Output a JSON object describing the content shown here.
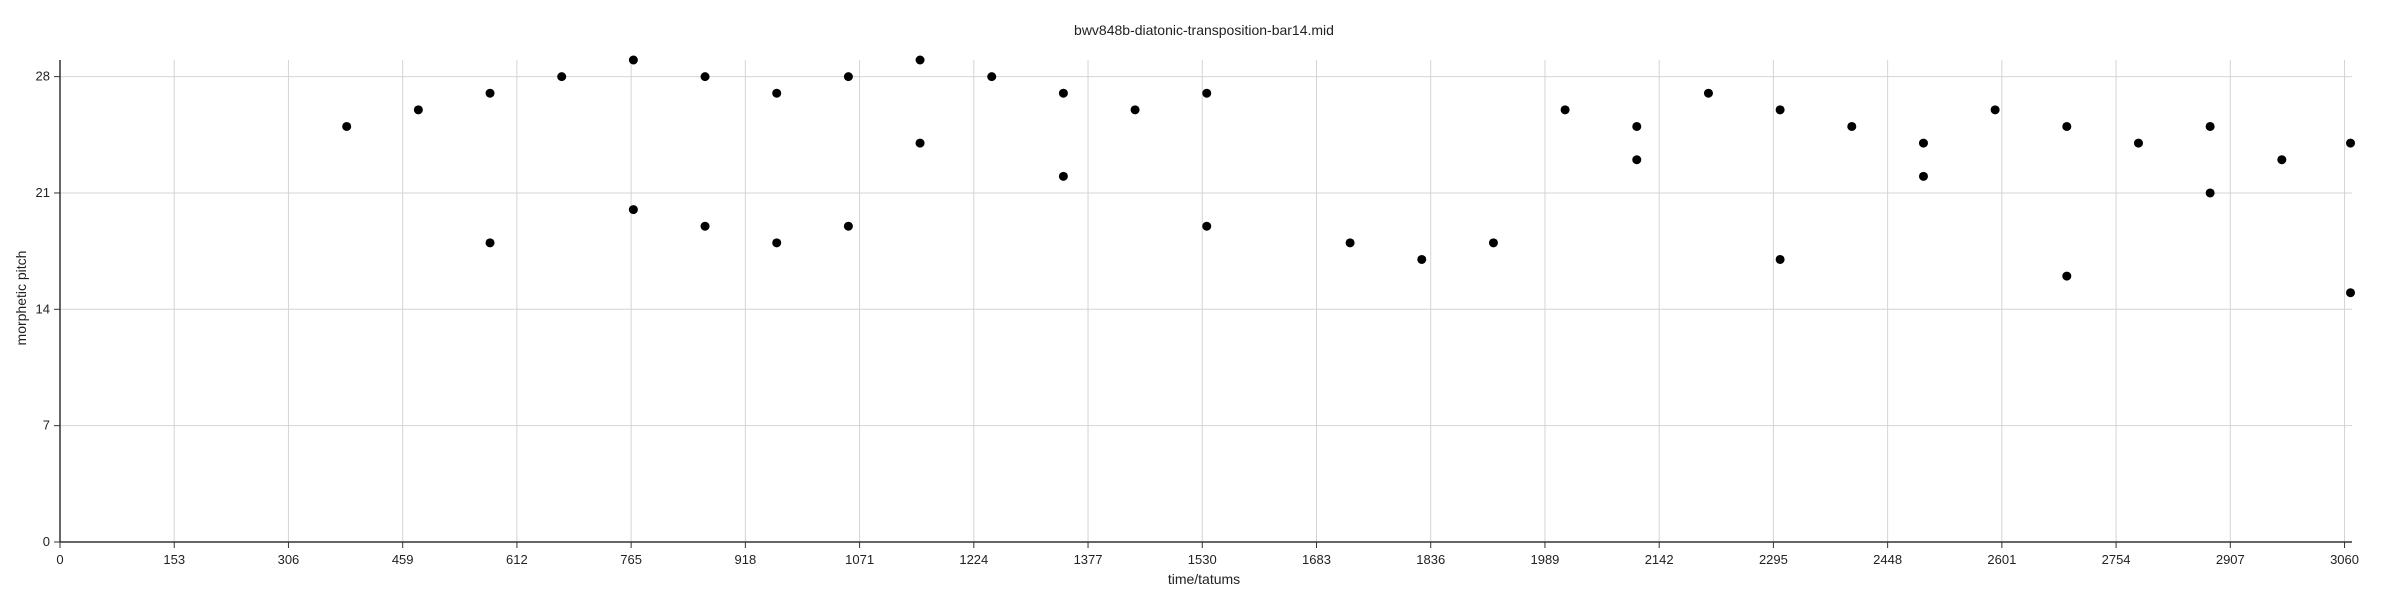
{
  "chart_data": {
    "type": "scatter",
    "title": "bwv848b-diatonic-transposition-bar14.mid",
    "xlabel": "time/tatums",
    "ylabel": "morphetic pitch",
    "xlim": [
      0,
      3070
    ],
    "ylim": [
      0,
      29
    ],
    "xticks": [
      0,
      153,
      306,
      459,
      612,
      765,
      918,
      1071,
      1224,
      1377,
      1530,
      1683,
      1836,
      1989,
      2142,
      2295,
      2448,
      2601,
      2754,
      2907,
      3060
    ],
    "yticks": [
      0,
      7,
      14,
      21,
      28
    ],
    "grid": true,
    "colors": {
      "points": "#000000",
      "grid": "#d4d4d4",
      "axis": "#333333"
    },
    "points": [
      {
        "x": 384,
        "y": 25
      },
      {
        "x": 480,
        "y": 26
      },
      {
        "x": 576,
        "y": 27
      },
      {
        "x": 576,
        "y": 18
      },
      {
        "x": 672,
        "y": 28
      },
      {
        "x": 768,
        "y": 29
      },
      {
        "x": 768,
        "y": 20
      },
      {
        "x": 864,
        "y": 28
      },
      {
        "x": 864,
        "y": 19
      },
      {
        "x": 960,
        "y": 27
      },
      {
        "x": 960,
        "y": 18
      },
      {
        "x": 1056,
        "y": 28
      },
      {
        "x": 1056,
        "y": 19
      },
      {
        "x": 1152,
        "y": 29
      },
      {
        "x": 1152,
        "y": 24
      },
      {
        "x": 1248,
        "y": 28
      },
      {
        "x": 1344,
        "y": 27
      },
      {
        "x": 1344,
        "y": 22
      },
      {
        "x": 1440,
        "y": 26
      },
      {
        "x": 1536,
        "y": 27
      },
      {
        "x": 1536,
        "y": 19
      },
      {
        "x": 1728,
        "y": 18
      },
      {
        "x": 1824,
        "y": 17
      },
      {
        "x": 1920,
        "y": 18
      },
      {
        "x": 2016,
        "y": 26
      },
      {
        "x": 2112,
        "y": 25
      },
      {
        "x": 2112,
        "y": 23
      },
      {
        "x": 2208,
        "y": 27
      },
      {
        "x": 2304,
        "y": 26
      },
      {
        "x": 2304,
        "y": 17
      },
      {
        "x": 2400,
        "y": 25
      },
      {
        "x": 2496,
        "y": 24
      },
      {
        "x": 2496,
        "y": 22
      },
      {
        "x": 2592,
        "y": 26
      },
      {
        "x": 2688,
        "y": 25
      },
      {
        "x": 2688,
        "y": 16
      },
      {
        "x": 2784,
        "y": 24
      },
      {
        "x": 2880,
        "y": 25
      },
      {
        "x": 2880,
        "y": 21
      },
      {
        "x": 2976,
        "y": 23
      },
      {
        "x": 3068,
        "y": 24
      },
      {
        "x": 3068,
        "y": 15
      }
    ]
  }
}
